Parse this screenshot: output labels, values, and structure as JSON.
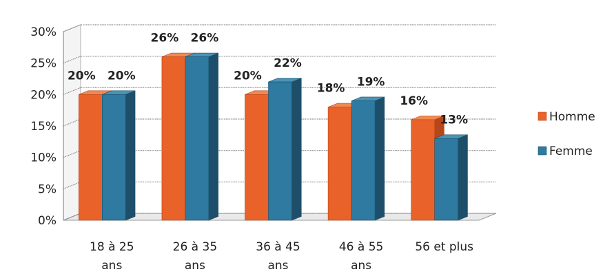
{
  "chart_data": {
    "type": "bar",
    "categories": [
      [
        "18 à 25",
        "ans"
      ],
      [
        "26 à 35",
        "ans"
      ],
      [
        "36 à 45",
        "ans"
      ],
      [
        "46 à 55",
        "ans"
      ],
      [
        "56 et plus"
      ]
    ],
    "series": [
      {
        "name": "Homme",
        "values": [
          20,
          26,
          20,
          18,
          16
        ],
        "labels": [
          "20%",
          "26%",
          "20%",
          "18%",
          "16%"
        ],
        "color": "#E8622A",
        "side_color": "#B8461B",
        "top_color": "#F08A50"
      },
      {
        "name": "Femme",
        "values": [
          20,
          26,
          22,
          19,
          13
        ],
        "labels": [
          "20%",
          "26%",
          "22%",
          "19%",
          "13%"
        ],
        "color": "#2E7AA0",
        "side_color": "#1D4F6B",
        "top_color": "#4A94B8"
      }
    ],
    "yticks": [
      "0%",
      "5%",
      "10%",
      "15%",
      "20%",
      "25%",
      "30%"
    ],
    "ylim": [
      0,
      30
    ],
    "ystep": 5,
    "grid": true,
    "legend_position": "right",
    "title": "",
    "xlabel": "",
    "ylabel": ""
  }
}
